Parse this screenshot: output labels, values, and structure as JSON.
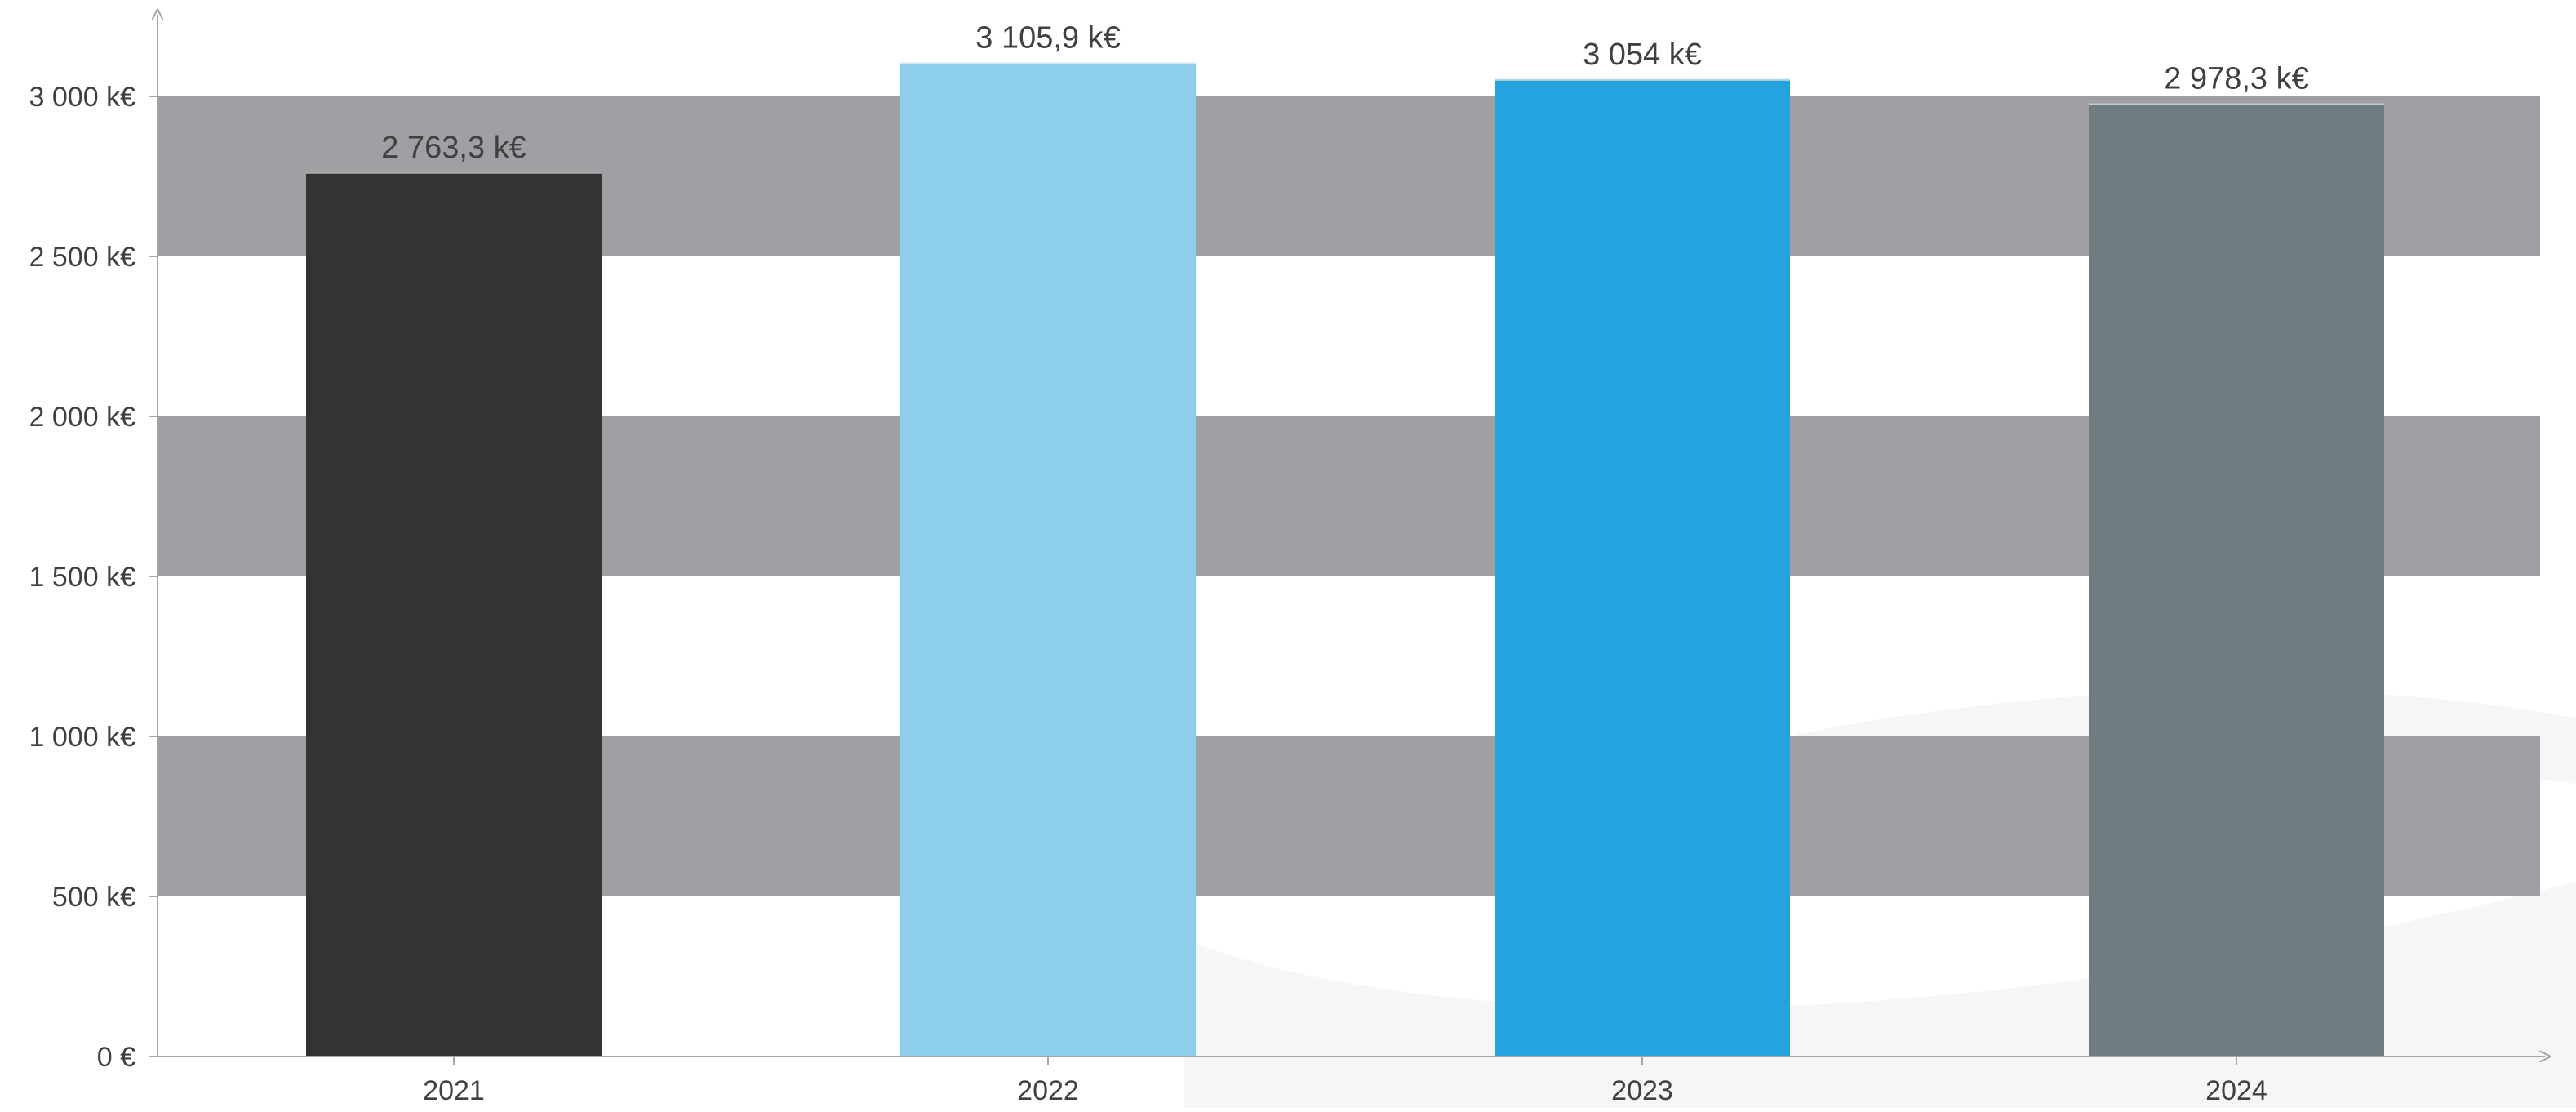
{
  "chart_data": {
    "type": "bar",
    "title": "",
    "xlabel": "",
    "ylabel": "",
    "categories": [
      "2021",
      "2022",
      "2023",
      "2024"
    ],
    "values": [
      2763.3,
      3105.9,
      3054,
      2978.3
    ],
    "data_labels": [
      "2 763,3 k€",
      "3 105,9 k€",
      "3 054 k€",
      "2 978,3 k€"
    ],
    "bar_colors": [
      "#333333",
      "#8ecfec",
      "#24a4de",
      "#6f7d81"
    ],
    "ylim": [
      0,
      3000
    ],
    "yticks": [
      0,
      500,
      1000,
      1500,
      2000,
      2500,
      3000
    ],
    "ytick_labels": [
      "0 €",
      "500 k€",
      "1 000 k€",
      "1 500 k€",
      "2 000 k€",
      "2 500 k€",
      "3 000 k€"
    ],
    "band_color": "#a09fa3",
    "axis_color": "#a6a6a6",
    "text_color": "#404040",
    "grid": false,
    "legend": "none"
  }
}
